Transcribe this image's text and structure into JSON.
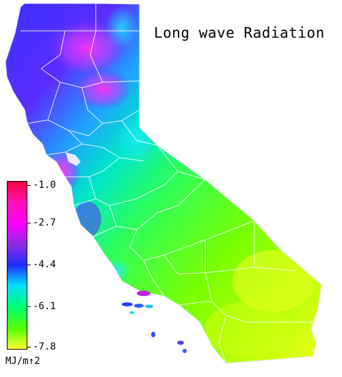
{
  "title": "Long wave Radiation",
  "legend": {
    "units": "MJ/m↑2",
    "ticks": [
      "-1.0",
      "-2.7",
      "-4.4",
      "-6.1",
      "-7.8"
    ],
    "min": -7.8,
    "max": -1.0,
    "colors": [
      "#ff0040",
      "#ff00ff",
      "#8a2be2",
      "#1f2cff",
      "#00e0ff",
      "#00ff70",
      "#56ff00",
      "#dfff00",
      "#ffff33"
    ]
  },
  "map": {
    "region": "California",
    "boundaries": "county lines",
    "palette": {
      "north_coast": "#4a2dff",
      "north_inland": "#d63cf0",
      "sierra": "#1ecfff",
      "central_valley": "#39ff6e",
      "south_desert": "#c8ff00"
    }
  }
}
